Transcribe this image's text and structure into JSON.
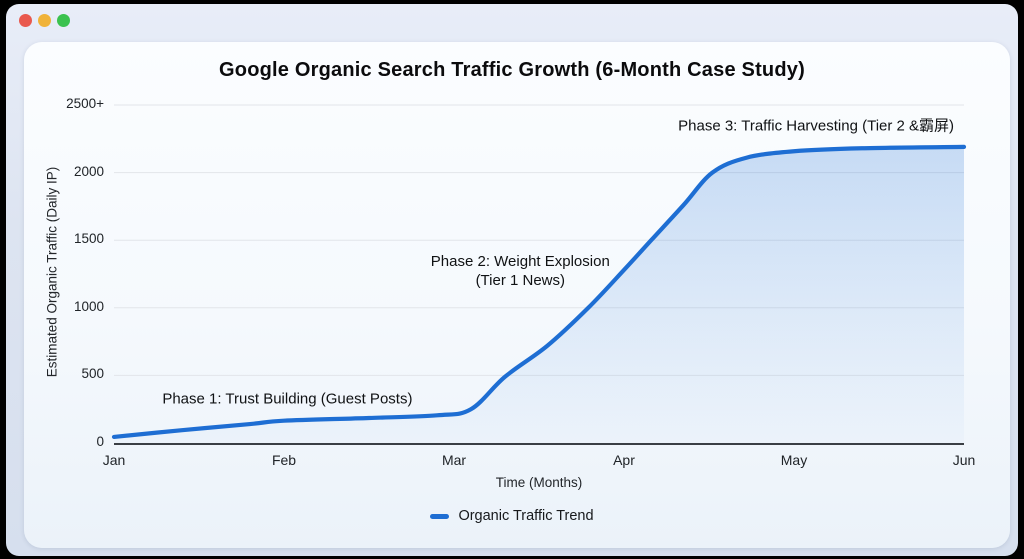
{
  "window": {
    "traffic_lights": [
      {
        "name": "close",
        "color": "#e9594e"
      },
      {
        "name": "minimize",
        "color": "#f0b33a"
      },
      {
        "name": "zoom",
        "color": "#3bc24f"
      }
    ]
  },
  "chart_data": {
    "type": "line",
    "title": "Google Organic Search Traffic Growth (6-Month Case Study)",
    "xlabel": "Time (Months)",
    "ylabel": "Estimated Organic Traffic (Daily IP)",
    "x_tick_labels": [
      "Jan",
      "Feb",
      "Mar",
      "Apr",
      "May",
      "Jun"
    ],
    "y_tick_labels": [
      "0",
      "500",
      "1000",
      "1500",
      "2000",
      "2500+"
    ],
    "y_tick_values": [
      0,
      500,
      1000,
      1500,
      2000,
      2500
    ],
    "ylim": [
      0,
      2500
    ],
    "xlim_months": [
      0,
      5
    ],
    "grid": true,
    "colors": {
      "line": "#1e6ed3",
      "area_top": "rgba(30,110,211,0.26)",
      "area_bottom": "rgba(30,110,211,0.02)",
      "gridline": "#e2e5ea",
      "axis": "#3a3e44"
    },
    "legend": {
      "position": "bottom",
      "entries": [
        {
          "label": "Organic Traffic Trend",
          "color": "#1e6ed3"
        }
      ]
    },
    "series": [
      {
        "name": "Organic Traffic Trend",
        "color": "#1e6ed3",
        "points": [
          [
            0,
            45
          ],
          [
            0.4,
            95
          ],
          [
            0.8,
            140
          ],
          [
            1,
            165
          ],
          [
            1.5,
            185
          ],
          [
            1.9,
            205
          ],
          [
            2.1,
            250
          ],
          [
            2.3,
            490
          ],
          [
            2.55,
            720
          ],
          [
            2.79,
            1000
          ],
          [
            3,
            1280
          ],
          [
            3.16,
            1500
          ],
          [
            3.35,
            1760
          ],
          [
            3.52,
            2000
          ],
          [
            3.72,
            2110
          ],
          [
            4,
            2158
          ],
          [
            4.4,
            2180
          ],
          [
            5,
            2190
          ]
        ]
      }
    ],
    "monthly_values": {
      "Jan": 45,
      "Feb": 165,
      "Mar": 210,
      "Apr": 1280,
      "May": 2160,
      "Jun": 2190
    },
    "annotations": [
      {
        "x": 1.02,
        "y": 325,
        "lines": [
          "Phase 1: Trust Building (Guest Posts)"
        ]
      },
      {
        "x": 2.39,
        "y": 1270,
        "lines": [
          "Phase 2: Weight Explosion",
          "(Tier 1 News)"
        ]
      },
      {
        "x": 4.13,
        "y": 2345,
        "lines": [
          "Phase 3: Traffic Harvesting (Tier 2 &霸屏)"
        ]
      }
    ]
  }
}
